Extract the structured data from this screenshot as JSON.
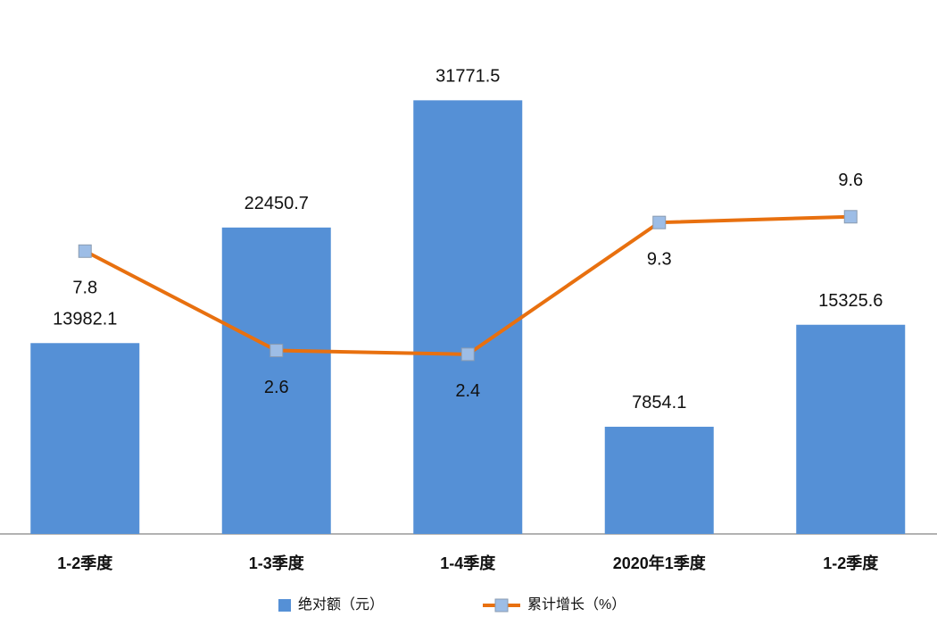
{
  "chart_data": {
    "type": "bar-line",
    "categories": [
      "1-2季度",
      "1-3季度",
      "1-4季度",
      "2020年1季度",
      "1-2季度"
    ],
    "series": [
      {
        "name": "绝对额（元）",
        "type": "bar",
        "color": "#5590d6",
        "values": [
          13982.1,
          22450.7,
          31771.5,
          7854.1,
          15325.6
        ]
      },
      {
        "name": "累计增长（%）",
        "type": "line",
        "axis": "y2",
        "color": "#e8700f",
        "marker_color": "#9dbde6",
        "values": [
          7.8,
          2.6,
          2.4,
          9.3,
          9.6
        ]
      }
    ],
    "ylim": [
      0,
      35000
    ],
    "y2lim": [
      -7,
      18
    ],
    "grid": false,
    "legend": "bottom"
  }
}
